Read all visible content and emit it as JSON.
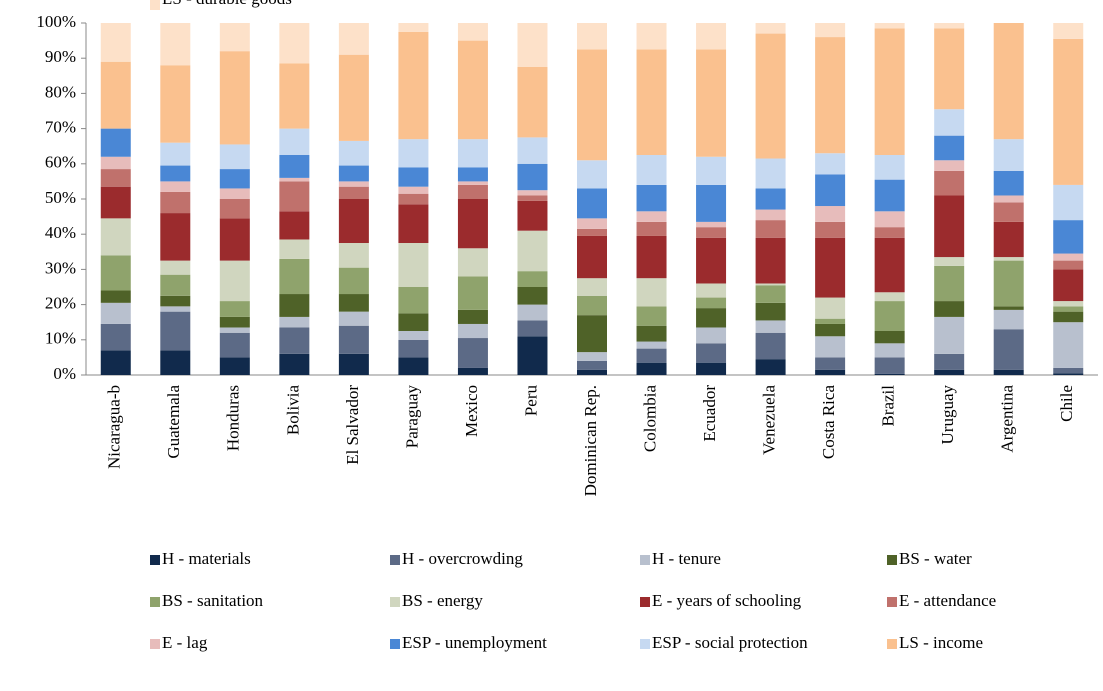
{
  "chart_data": {
    "type": "stacked_bar_100",
    "categories": [
      "Nicaragua-b",
      "Guatemala",
      "Honduras",
      "Bolivia",
      "El Salvador",
      "Paraguay",
      "Mexico",
      "Peru",
      "Dominican Rep.",
      "Colombia",
      "Ecuador",
      "Venezuela",
      "Costa Rica",
      "Brazil",
      "Uruguay",
      "Argentina",
      "Chile"
    ],
    "ylim": [
      0,
      100
    ],
    "yticks": [
      {
        "value": 0,
        "label": "0%"
      },
      {
        "value": 10,
        "label": "10%"
      },
      {
        "value": 20,
        "label": "20%"
      },
      {
        "value": 30,
        "label": "30%"
      },
      {
        "value": 40,
        "label": "40%"
      },
      {
        "value": 50,
        "label": "50%"
      },
      {
        "value": 60,
        "label": "60%"
      },
      {
        "value": 70,
        "label": "70%"
      },
      {
        "value": 80,
        "label": "80%"
      },
      {
        "value": 90,
        "label": "90%"
      },
      {
        "value": 100,
        "label": "100%"
      }
    ],
    "legend": "bottom",
    "series": [
      {
        "name": "H - materials",
        "color": "#112a4c",
        "values": [
          7,
          7,
          5,
          6,
          6,
          5,
          2,
          11,
          1.5,
          3.5,
          3.5,
          4.5,
          1.5,
          0.3,
          1.5,
          1.5,
          0.5
        ]
      },
      {
        "name": "H - overcrowding",
        "color": "#5c6a86",
        "values": [
          7.5,
          11,
          7,
          7.5,
          8,
          5,
          8.5,
          4.5,
          2.5,
          4,
          5.5,
          7.5,
          3.5,
          4.7,
          4.5,
          11.5,
          1.5
        ]
      },
      {
        "name": "H - tenure",
        "color": "#b8c0ce",
        "values": [
          6,
          1.5,
          1.5,
          3,
          4,
          2.5,
          4,
          4.5,
          2.5,
          2,
          4.5,
          3.5,
          6,
          4,
          10.5,
          5.5,
          13
        ]
      },
      {
        "name": "BS - water",
        "color": "#4f6228",
        "values": [
          3.5,
          3,
          3,
          6.5,
          5,
          5,
          4,
          5,
          10.5,
          4.5,
          5.5,
          5,
          3.5,
          3.5,
          4.5,
          1,
          3
        ]
      },
      {
        "name": "BS - sanitation",
        "color": "#8fa36c",
        "values": [
          10,
          6,
          4.5,
          10,
          7.5,
          7.5,
          9.5,
          4.5,
          5.5,
          5.5,
          3,
          5,
          1.5,
          8.5,
          10,
          13,
          1.5
        ]
      },
      {
        "name": "BS - energy",
        "color": "#d0d6bf",
        "values": [
          10.5,
          4,
          11.5,
          5.5,
          7,
          12.5,
          8,
          11.5,
          5,
          8,
          4,
          0.5,
          6,
          2.5,
          2.5,
          1,
          1.5
        ]
      },
      {
        "name": "E - years of schooling",
        "color": "#9b2b2d",
        "values": [
          9,
          13.5,
          12,
          8,
          12.5,
          11,
          14,
          8.5,
          12,
          12,
          13,
          13,
          17,
          15.5,
          17.5,
          10,
          9
        ]
      },
      {
        "name": "E - attendance",
        "color": "#c0716c",
        "values": [
          5,
          6,
          5.5,
          8.5,
          3.5,
          3,
          4,
          1.5,
          2,
          4,
          3,
          5,
          4.5,
          3,
          7,
          5.5,
          2.5
        ]
      },
      {
        "name": "E - lag",
        "color": "#e7bcbb",
        "values": [
          3.5,
          3,
          3,
          1,
          1.5,
          2,
          1,
          1.5,
          3,
          3,
          1.5,
          3,
          4.5,
          4.5,
          3,
          2,
          2
        ]
      },
      {
        "name": "ESP - unemployment",
        "color": "#4a87d5",
        "values": [
          8,
          4.5,
          5.5,
          6.5,
          4.5,
          5.5,
          4,
          7.5,
          8.5,
          7.5,
          10.5,
          6,
          9,
          9,
          7,
          7,
          9.5
        ]
      },
      {
        "name": "ESP - social protection",
        "color": "#c6d9f1",
        "values": [
          0,
          6.5,
          7,
          7.5,
          7,
          8,
          8,
          7.5,
          8,
          8.5,
          8,
          8.5,
          6,
          7,
          7.5,
          9,
          10
        ]
      },
      {
        "name": "LS - income",
        "color": "#fac18f",
        "values": [
          19,
          22,
          26.5,
          18.5,
          24.5,
          30.5,
          28,
          20,
          31.5,
          30,
          30.5,
          35.5,
          33,
          36,
          23,
          33,
          41.5
        ]
      },
      {
        "name": "LS - durable goods",
        "color": "#fde1c9",
        "values": [
          11,
          12,
          8,
          11.5,
          9,
          2.5,
          5,
          12.5,
          7.5,
          7.5,
          7.5,
          3,
          4,
          1.5,
          1.5,
          0,
          4.5
        ]
      }
    ]
  }
}
